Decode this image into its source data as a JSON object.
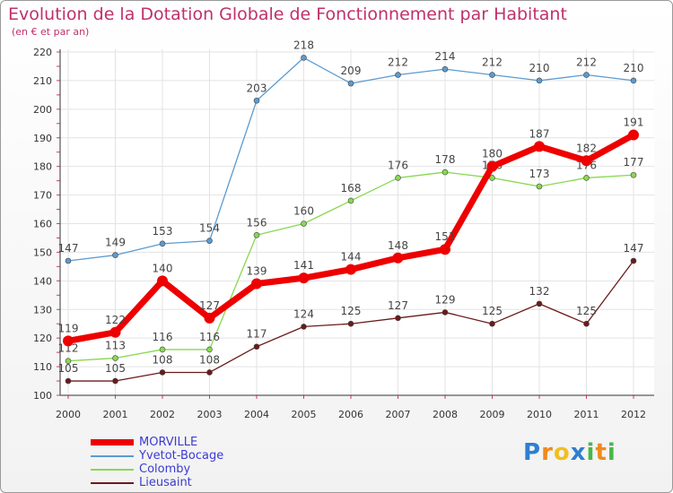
{
  "chart_data": {
    "type": "line",
    "title": "Evolution de la Dotation Globale de Fonctionnement par Habitant",
    "subtitle": "(en € et par an)",
    "x": [
      "2000",
      "2001",
      "2002",
      "2003",
      "2004",
      "2005",
      "2006",
      "2007",
      "2008",
      "2009",
      "2010",
      "2011",
      "2012"
    ],
    "yticks": [
      100,
      110,
      120,
      130,
      140,
      150,
      160,
      170,
      180,
      190,
      200,
      210,
      220
    ],
    "ylim": [
      100,
      220
    ],
    "series": [
      {
        "name": "Lieusaint",
        "color": "#6b1a1a",
        "values": [
          105,
          105,
          108,
          108,
          117,
          124,
          125,
          127,
          129,
          125,
          132,
          125,
          147
        ]
      },
      {
        "name": "Colomby",
        "color": "#88d850",
        "values": [
          112,
          113,
          116,
          116,
          156,
          160,
          168,
          176,
          178,
          176,
          173,
          176,
          177
        ]
      },
      {
        "name": "Yvetot-Bocage",
        "color": "#5b9bd0",
        "values": [
          147,
          149,
          153,
          154,
          203,
          218,
          209,
          212,
          214,
          212,
          210,
          212,
          210
        ]
      },
      {
        "name": "MORVILLE",
        "color": "#ee0000",
        "values": [
          119,
          122,
          140,
          127,
          139,
          141,
          144,
          148,
          151,
          180,
          187,
          182,
          191
        ]
      }
    ],
    "legend": [
      {
        "name": "MORVILLE",
        "color": "#ee0000"
      },
      {
        "name": "Yvetot-Bocage",
        "color": "#5b9bd0"
      },
      {
        "name": "Colomby",
        "color": "#88d850"
      },
      {
        "name": "Lieusaint",
        "color": "#6b1a1a"
      }
    ]
  },
  "brand": {
    "letters": [
      "P",
      "r",
      "o",
      "x",
      "i",
      "t",
      "i"
    ],
    "colors": [
      "#2e7fd0",
      "#f08a1c",
      "#f0c020",
      "#2e7fd0",
      "#48b848",
      "#f08a1c",
      "#48b848"
    ]
  }
}
